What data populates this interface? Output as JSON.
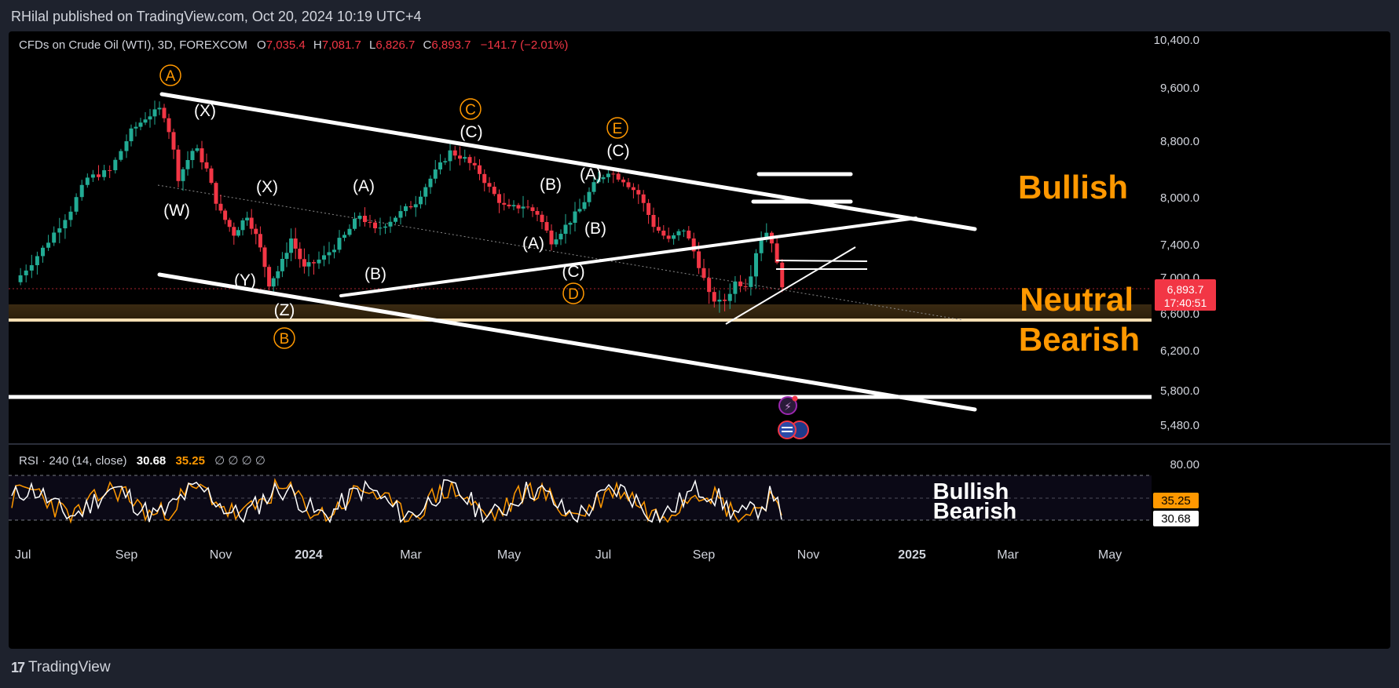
{
  "header": {
    "publisher": "RHilal published on TradingView.com, Oct 20, 2024 10:19 UTC+4"
  },
  "legend": {
    "symbol": "CFDs on Crude Oil (WTI), 3D, FOREXCOM",
    "ohlc": [
      {
        "k": "O",
        "v": "7,035.4"
      },
      {
        "k": "H",
        "v": "7,081.7"
      },
      {
        "k": "L",
        "v": "6,826.7"
      },
      {
        "k": "C",
        "v": "6,893.7"
      }
    ],
    "change": "−141.7 (−2.01%)"
  },
  "rsi_legend": {
    "label": "RSI · 240 (14, close)",
    "value1": "30.68",
    "value2": "35.25",
    "placeholders": "∅ ∅ ∅ ∅"
  },
  "price_tag": {
    "price": "6,893.7",
    "countdown": "17:40:51"
  },
  "rsi_tags": {
    "v1": "35.25",
    "v2": "30.68"
  },
  "zone_labels": {
    "bullish": "Bullish",
    "neutral": "Neutral",
    "bearish": "Bearish"
  },
  "rsi_zone_labels": {
    "bullish": "Bullish",
    "bearish": "Bearish"
  },
  "footer": {
    "brand": "TradingView"
  },
  "colors": {
    "background": "#000000",
    "up": "#22ab94",
    "down": "#f23645",
    "annotation": "#ff9800",
    "rsi_line_1": "#ffffff",
    "rsi_line_2": "#ff9800"
  },
  "chart_data": {
    "type": "candlestick",
    "timeframe": "3D",
    "y_axis": {
      "ticks": [
        10400,
        9600,
        8800,
        8000,
        7400,
        7000,
        6600,
        6200,
        5800,
        5480
      ],
      "tick_labels": [
        "10,400.0",
        "9,600.0",
        "8,800.0",
        "8,000.0",
        "7,400.0",
        "7,000.0",
        "6,600.0",
        "6,200.0",
        "5,800.0",
        "5,480.0"
      ]
    },
    "x_axis": {
      "ticks": [
        {
          "label": "Jul",
          "t": 0
        },
        {
          "label": "Sep",
          "t": 2
        },
        {
          "label": "Nov",
          "t": 4
        },
        {
          "label": "2024",
          "t": 6
        },
        {
          "label": "Mar",
          "t": 8
        },
        {
          "label": "May",
          "t": 10
        },
        {
          "label": "Jul",
          "t": 12
        },
        {
          "label": "Sep",
          "t": 14
        },
        {
          "label": "Nov",
          "t": 16
        },
        {
          "label": "2025",
          "t": 18
        },
        {
          "label": "Mar",
          "t": 20
        },
        {
          "label": "May",
          "t": 22
        }
      ]
    },
    "price_path": [
      [
        0.0,
        6950
      ],
      [
        0.5,
        7350
      ],
      [
        1.0,
        7850
      ],
      [
        1.3,
        8280
      ],
      [
        1.7,
        8380
      ],
      [
        2.1,
        8950
      ],
      [
        2.4,
        9150
      ],
      [
        2.75,
        9300
      ],
      [
        2.95,
        8850
      ],
      [
        3.1,
        8280
      ],
      [
        3.45,
        8730
      ],
      [
        3.7,
        8400
      ],
      [
        3.95,
        7850
      ],
      [
        4.3,
        7540
      ],
      [
        4.6,
        7780
      ],
      [
        4.85,
        7450
      ],
      [
        5.1,
        6940
      ],
      [
        5.35,
        7120
      ],
      [
        5.6,
        7480
      ],
      [
        5.9,
        7110
      ],
      [
        6.3,
        7250
      ],
      [
        6.7,
        7510
      ],
      [
        7.0,
        7780
      ],
      [
        7.3,
        7580
      ],
      [
        7.7,
        7760
      ],
      [
        8.1,
        7950
      ],
      [
        8.4,
        8270
      ],
      [
        8.8,
        8650
      ],
      [
        9.1,
        8550
      ],
      [
        9.4,
        8350
      ],
      [
        9.65,
        8080
      ],
      [
        9.95,
        7850
      ],
      [
        10.3,
        7900
      ],
      [
        10.6,
        7800
      ],
      [
        10.9,
        7450
      ],
      [
        11.2,
        7640
      ],
      [
        11.5,
        7850
      ],
      [
        11.8,
        8180
      ],
      [
        12.1,
        8380
      ],
      [
        12.4,
        8250
      ],
      [
        12.7,
        8050
      ],
      [
        13.0,
        7650
      ],
      [
        13.3,
        7450
      ],
      [
        13.6,
        7600
      ],
      [
        13.85,
        7250
      ],
      [
        14.1,
        6800
      ],
      [
        14.35,
        6700
      ],
      [
        14.6,
        6950
      ],
      [
        14.85,
        6930
      ],
      [
        15.05,
        7450
      ],
      [
        15.25,
        7600
      ],
      [
        15.4,
        7150
      ],
      [
        15.5,
        6894
      ]
    ],
    "rsi": {
      "levels": [
        80,
        50,
        30
      ],
      "axis_label": "80.00",
      "series": [
        {
          "color": "#ffffff",
          "last": 30.68
        },
        {
          "color": "#ff9800",
          "last": 35.25
        }
      ]
    }
  }
}
